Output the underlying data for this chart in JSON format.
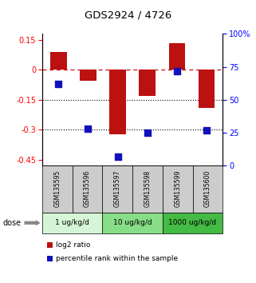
{
  "title": "GDS2924 / 4726",
  "samples": [
    "GSM135595",
    "GSM135596",
    "GSM135597",
    "GSM135598",
    "GSM135599",
    "GSM135600"
  ],
  "log2_ratio": [
    0.09,
    -0.055,
    -0.325,
    -0.13,
    0.135,
    -0.19
  ],
  "percentile_rank": [
    62,
    28,
    7,
    25,
    72,
    27
  ],
  "dose_groups": [
    {
      "label": "1 ug/kg/d",
      "samples": [
        0,
        1
      ],
      "color": "#d6f5d6"
    },
    {
      "label": "10 ug/kg/d",
      "samples": [
        2,
        3
      ],
      "color": "#88dd88"
    },
    {
      "label": "1000 ug/kg/d",
      "samples": [
        4,
        5
      ],
      "color": "#44bb44"
    }
  ],
  "bar_color": "#bb1111",
  "dot_color": "#1111bb",
  "ylim_left": [
    -0.48,
    0.18
  ],
  "ylim_right": [
    0,
    100
  ],
  "yticks_left": [
    0.15,
    0.0,
    -0.15,
    -0.3,
    -0.45
  ],
  "yticks_right": [
    100,
    75,
    50,
    25,
    0
  ],
  "hline_color": "#cc1111",
  "dotted_lines": [
    -0.15,
    -0.3
  ],
  "sample_box_color": "#cccccc",
  "bar_width": 0.55,
  "dot_size": 28,
  "legend_items": [
    "log2 ratio",
    "percentile rank within the sample"
  ]
}
